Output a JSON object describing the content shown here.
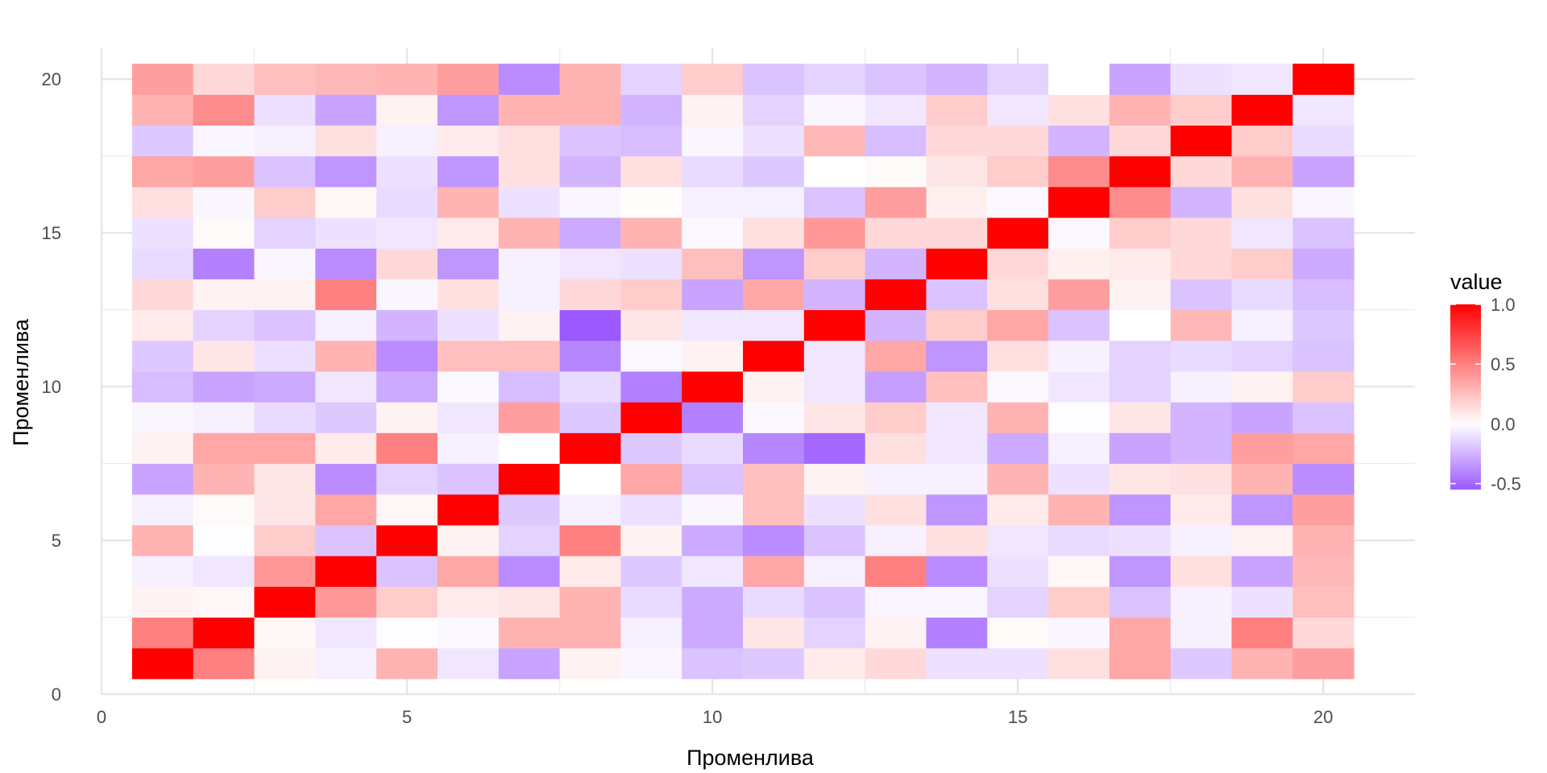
{
  "chart_data": {
    "type": "heatmap",
    "title": "",
    "xlabel": "Променлива",
    "ylabel": "Променлива",
    "xlim": [
      0,
      21.5
    ],
    "ylim": [
      0,
      21
    ],
    "x_ticks": [
      "0",
      "5",
      "10",
      "15",
      "20"
    ],
    "y_ticks": [
      "0",
      "5",
      "10",
      "15",
      "20"
    ],
    "grid": true,
    "legend": {
      "title": "value",
      "position": "right",
      "ticks": [
        "1.0",
        "0.5",
        "0.0",
        "-0.5"
      ],
      "range": [
        -0.55,
        1.0
      ]
    },
    "colors": {
      "low": "#9b59ff",
      "mid": "#ffffff",
      "high": "#ff0000"
    },
    "x": [
      1,
      2,
      3,
      4,
      5,
      6,
      7,
      8,
      9,
      10,
      11,
      12,
      13,
      14,
      15,
      16,
      17,
      18,
      19,
      20
    ],
    "y": [
      1,
      2,
      3,
      4,
      5,
      6,
      7,
      8,
      9,
      10,
      11,
      12,
      13,
      14,
      15,
      16,
      17,
      18,
      19,
      20
    ],
    "values": [
      [
        1.0,
        0.5,
        0.05,
        -0.05,
        0.3,
        -0.08,
        -0.3,
        0.05,
        -0.03,
        -0.2,
        -0.18,
        0.08,
        0.15,
        -0.1,
        -0.1,
        0.12,
        0.35,
        -0.18,
        0.3,
        0.38
      ],
      [
        0.5,
        1.0,
        0.03,
        -0.08,
        -0.01,
        -0.02,
        0.3,
        0.3,
        -0.05,
        -0.28,
        0.1,
        -0.15,
        0.05,
        -0.42,
        0.02,
        -0.03,
        0.35,
        -0.05,
        0.5,
        0.15
      ],
      [
        0.05,
        0.03,
        1.0,
        0.4,
        0.2,
        0.08,
        0.1,
        0.3,
        -0.12,
        -0.28,
        -0.12,
        -0.2,
        -0.03,
        -0.03,
        -0.15,
        0.2,
        -0.2,
        -0.05,
        -0.1,
        0.25
      ],
      [
        -0.05,
        -0.08,
        0.4,
        1.0,
        -0.2,
        0.35,
        -0.38,
        0.08,
        -0.18,
        -0.08,
        0.35,
        -0.05,
        0.5,
        -0.38,
        -0.1,
        0.03,
        -0.35,
        0.12,
        -0.3,
        0.28
      ],
      [
        0.3,
        -0.01,
        0.2,
        -0.2,
        1.0,
        0.05,
        -0.15,
        0.5,
        0.05,
        -0.28,
        -0.38,
        -0.2,
        -0.05,
        0.12,
        -0.08,
        -0.12,
        -0.1,
        -0.05,
        0.05,
        0.3
      ],
      [
        -0.05,
        0.02,
        0.1,
        0.35,
        0.03,
        1.0,
        -0.18,
        -0.05,
        -0.1,
        -0.03,
        0.25,
        -0.1,
        0.12,
        -0.35,
        0.08,
        0.3,
        -0.35,
        0.08,
        -0.35,
        0.38
      ],
      [
        -0.3,
        0.3,
        0.1,
        -0.38,
        -0.15,
        -0.2,
        1.0,
        0.0,
        0.35,
        -0.2,
        0.25,
        0.05,
        -0.05,
        -0.05,
        0.3,
        -0.1,
        0.1,
        0.12,
        0.3,
        -0.38
      ],
      [
        0.05,
        0.35,
        0.35,
        0.08,
        0.5,
        -0.05,
        0.0,
        1.0,
        -0.18,
        -0.12,
        -0.4,
        -0.5,
        0.12,
        -0.08,
        -0.28,
        -0.05,
        -0.3,
        -0.25,
        0.38,
        0.35
      ],
      [
        -0.03,
        -0.05,
        -0.12,
        -0.18,
        0.05,
        -0.08,
        0.38,
        -0.18,
        1.0,
        -0.42,
        -0.02,
        0.1,
        0.2,
        -0.08,
        0.3,
        -0.01,
        0.1,
        -0.25,
        -0.3,
        -0.2
      ],
      [
        -0.22,
        -0.3,
        -0.28,
        -0.08,
        -0.28,
        -0.02,
        -0.22,
        -0.12,
        -0.42,
        1.0,
        0.05,
        -0.08,
        -0.32,
        0.25,
        -0.02,
        -0.08,
        -0.15,
        -0.05,
        0.05,
        0.2
      ],
      [
        -0.18,
        0.1,
        -0.1,
        0.3,
        -0.38,
        0.25,
        0.25,
        -0.4,
        -0.02,
        0.05,
        1.0,
        -0.08,
        0.35,
        -0.35,
        0.12,
        -0.05,
        -0.15,
        -0.12,
        -0.15,
        -0.2
      ],
      [
        0.08,
        -0.15,
        -0.2,
        -0.05,
        -0.25,
        -0.1,
        0.05,
        -0.55,
        0.1,
        -0.08,
        -0.08,
        1.0,
        -0.25,
        0.2,
        0.35,
        -0.2,
        0.0,
        0.28,
        -0.05,
        -0.18
      ],
      [
        0.15,
        0.05,
        0.05,
        0.5,
        -0.03,
        0.12,
        -0.05,
        0.15,
        0.2,
        -0.3,
        0.35,
        -0.25,
        1.0,
        -0.2,
        0.12,
        0.38,
        0.05,
        -0.2,
        -0.12,
        -0.22
      ],
      [
        -0.12,
        -0.42,
        -0.03,
        -0.38,
        0.15,
        -0.35,
        -0.05,
        -0.08,
        -0.1,
        0.25,
        -0.35,
        0.2,
        -0.25,
        1.0,
        0.15,
        0.06,
        0.08,
        0.15,
        0.2,
        -0.28
      ],
      [
        -0.1,
        0.02,
        -0.15,
        -0.1,
        -0.08,
        0.08,
        0.3,
        -0.28,
        0.3,
        -0.02,
        0.12,
        0.4,
        0.15,
        0.15,
        1.0,
        -0.02,
        0.2,
        0.15,
        -0.08,
        -0.2
      ],
      [
        0.12,
        -0.03,
        0.2,
        0.03,
        -0.12,
        0.3,
        -0.1,
        -0.03,
        0.01,
        -0.05,
        -0.05,
        -0.2,
        0.38,
        0.06,
        -0.02,
        1.0,
        0.45,
        -0.25,
        0.12,
        -0.03
      ],
      [
        0.35,
        0.38,
        -0.2,
        -0.35,
        -0.1,
        -0.35,
        0.12,
        -0.25,
        0.12,
        -0.12,
        -0.18,
        0.0,
        0.02,
        0.1,
        0.2,
        0.45,
        1.0,
        0.15,
        0.3,
        -0.3
      ],
      [
        -0.18,
        -0.03,
        -0.05,
        0.12,
        -0.05,
        0.08,
        0.12,
        -0.2,
        -0.22,
        -0.03,
        -0.1,
        0.28,
        -0.22,
        0.15,
        0.15,
        -0.25,
        0.15,
        1.0,
        0.2,
        -0.12
      ],
      [
        0.3,
        0.45,
        -0.1,
        -0.3,
        0.05,
        -0.35,
        0.3,
        0.3,
        -0.25,
        0.05,
        -0.15,
        -0.03,
        -0.08,
        0.2,
        -0.08,
        0.12,
        0.3,
        0.2,
        1.0,
        -0.08
      ],
      [
        0.38,
        0.15,
        0.25,
        0.28,
        0.3,
        0.38,
        -0.38,
        0.3,
        -0.15,
        0.2,
        -0.2,
        -0.15,
        -0.2,
        -0.25,
        -0.15,
        0.0,
        -0.3,
        -0.1,
        -0.08,
        1.0
      ]
    ]
  }
}
